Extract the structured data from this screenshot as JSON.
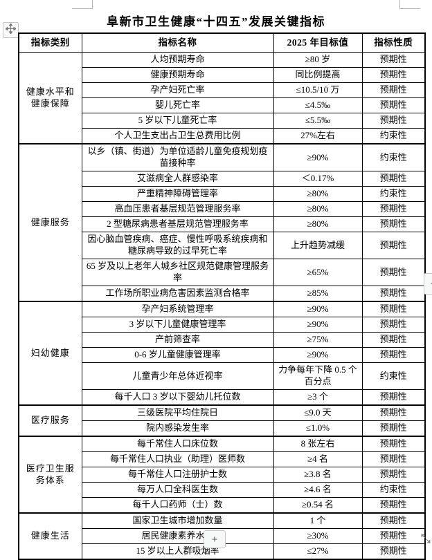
{
  "page": {
    "title": "阜新市卫生健康“十四五”发展关键指标"
  },
  "table": {
    "headers": [
      "指标类别",
      "指标名称",
      "2025 年目标值",
      "指标性质"
    ],
    "categories": [
      {
        "label": "健康水平和健康保障",
        "span": 6
      },
      {
        "label": "健康服务",
        "span": 8
      },
      {
        "label": "妇幼健康",
        "span": 6
      },
      {
        "label": "医疗服务",
        "span": 2
      },
      {
        "label": "医疗卫生服务体系",
        "span": 5
      },
      {
        "label": "健康生活",
        "span": 3
      }
    ],
    "rows": [
      {
        "name": "人均预期寿命",
        "target": "≥80 岁",
        "nature": "预期性"
      },
      {
        "name": "健康预期寿命",
        "target": "同比例提高",
        "nature": "预期性"
      },
      {
        "name": "孕产妇死亡率",
        "target": "≤10.5/10 万",
        "nature": "预期性"
      },
      {
        "name": "婴儿死亡率",
        "target": "≤4.5‰",
        "nature": "预期性"
      },
      {
        "name": "5 岁以下儿童死亡率",
        "target": "≤5.5‰",
        "nature": "预期性"
      },
      {
        "name": "个人卫生支出占卫生总费用比例",
        "target": "27%左右",
        "nature": "约束性"
      },
      {
        "name": "以乡（镇、街道）为单位适龄儿童免疫规划疫苗接种率",
        "target": "≥90%",
        "nature": "约束性",
        "tall": true
      },
      {
        "name": "艾滋病全人群感染率",
        "target": "＜0.17%",
        "nature": "预期性"
      },
      {
        "name": "严重精神障碍管理率",
        "target": "≥80%",
        "nature": "约束性"
      },
      {
        "name": "高血压患者基层规范管理服务率",
        "target": "≥80%",
        "nature": "预期性"
      },
      {
        "name": "2 型糖尿病患者基层规范管理服务率",
        "target": "≥80%",
        "nature": "预期性"
      },
      {
        "name": "因心脑血管疾病、癌症、慢性呼吸系统疾病和糖尿病导致的过早死亡率",
        "target": "上升趋势减缓",
        "nature": "预期性",
        "tall": true
      },
      {
        "name": "65 岁及以上老年人城乡社区规范健康管理服务率",
        "target": "≥65%",
        "nature": "预期性",
        "tall": true
      },
      {
        "name": "工作场所职业病危害因素监测合格率",
        "target": "≥85%",
        "nature": "预期性"
      },
      {
        "name": "孕产妇系统管理率",
        "target": "≥90%",
        "nature": "预期性"
      },
      {
        "name": "3 岁以下儿童健康管理率",
        "target": "≥90%",
        "nature": "预期性"
      },
      {
        "name": "产前筛查率",
        "target": "≥75%",
        "nature": "预期性"
      },
      {
        "name": "0-6 岁儿童健康管理率",
        "target": "≥90%",
        "nature": "预期性"
      },
      {
        "name": "儿童青少年总体近视率",
        "target": "力争每年下降 0.5 个百分点",
        "nature": "约束性",
        "tall": true
      },
      {
        "name": "每千人口 3 岁以下婴幼儿托位数",
        "target": "≥3 个",
        "nature": "预期性"
      },
      {
        "name": "三级医院平均住院日",
        "target": "≤9.0 天",
        "nature": "预期性"
      },
      {
        "name": "院内感染发生率",
        "target": "≤1.0%",
        "nature": "预期性"
      },
      {
        "name": "每千常住人口床位数",
        "target": "8 张左右",
        "nature": "预期性"
      },
      {
        "name": "每千常住人口执业（助理）医师数",
        "target": "≥4 名",
        "nature": "预期性"
      },
      {
        "name": "每千常住人口注册护士数",
        "target": "≥3.8 名",
        "nature": "预期性"
      },
      {
        "name": "每万人口全科医生数",
        "target": "≥4.6 名",
        "nature": "约束性"
      },
      {
        "name": "每千人口药师（士）数",
        "target": "≥0.54 名",
        "nature": "预期性"
      },
      {
        "name": "国家卫生城市增加数量",
        "target": "1 个",
        "nature": "预期性"
      },
      {
        "name": "居民健康素养水平",
        "target": "≥30%",
        "nature": "预期性"
      },
      {
        "name": "15 岁以上人群吸烟率",
        "target": "≤27%",
        "nature": "预期性"
      }
    ]
  },
  "handles": {
    "insert_column_label": "+",
    "insert_row_label": "+"
  },
  "colors": {
    "border": "#000000",
    "text": "#000000",
    "handle_border": "#c6c6c6",
    "handle_bg": "#f7f8f8",
    "corner_mark": "#b5b5b5"
  }
}
